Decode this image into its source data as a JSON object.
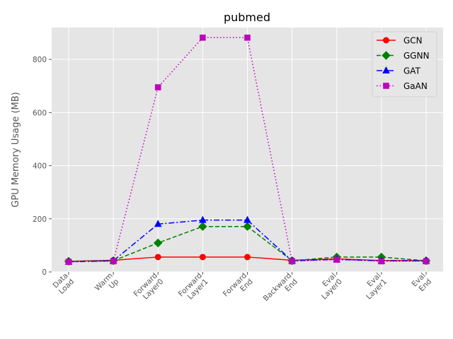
{
  "chart_data": {
    "type": "line",
    "title": "pubmed",
    "xlabel": "",
    "ylabel": "GPU Memory Usage (MB)",
    "categories": [
      "Data\nLoad",
      "Warm\nUp",
      "Forward\nLayer0",
      "Forward\nLayer1",
      "Forward\nEnd",
      "Backward\nEnd",
      "Eval\nLayer0",
      "Eval\nLayer1",
      "Eval\nEnd"
    ],
    "ylim": [
      0,
      920
    ],
    "yticks": [
      0,
      200,
      400,
      600,
      800
    ],
    "grid": true,
    "legend_position": "top-right",
    "series": [
      {
        "name": "GCN",
        "color": "#ff0000",
        "marker": "circle",
        "linestyle": "solid",
        "values": [
          40,
          44,
          56,
          56,
          56,
          44,
          49,
          43,
          43
        ]
      },
      {
        "name": "GGNN",
        "color": "#008000",
        "marker": "diamond",
        "linestyle": "dashed",
        "values": [
          40,
          42,
          109,
          171,
          171,
          42,
          56,
          56,
          42
        ]
      },
      {
        "name": "GAT",
        "color": "#0000ff",
        "marker": "triangle",
        "linestyle": "dashdot",
        "values": [
          38,
          42,
          180,
          195,
          195,
          42,
          47,
          42,
          42
        ]
      },
      {
        "name": "GaAN",
        "color": "#bf00bf",
        "marker": "square",
        "linestyle": "dotted",
        "values": [
          38,
          40,
          695,
          882,
          882,
          40,
          46,
          40,
          40
        ]
      }
    ]
  }
}
